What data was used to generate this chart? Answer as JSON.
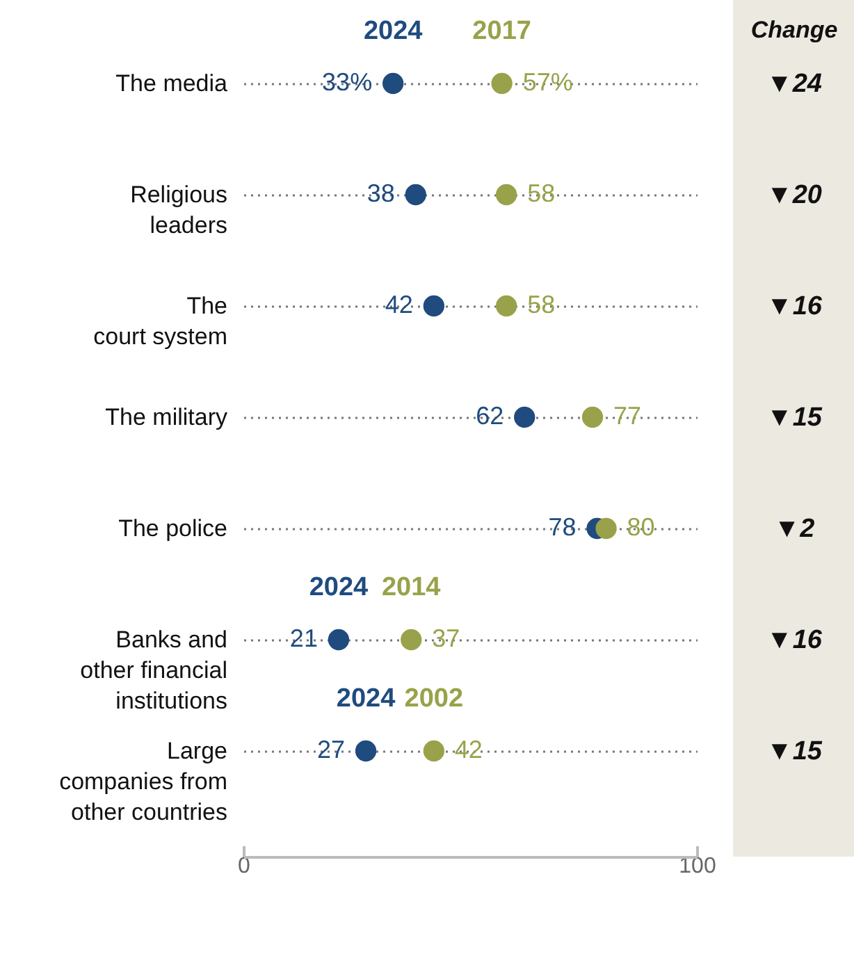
{
  "chart_data": {
    "type": "scatter",
    "categories": [
      "The media",
      "Religious leaders",
      "The court system",
      "The military",
      "The police",
      "Banks and other financial institutions",
      "Large companies from other countries"
    ],
    "series": [
      {
        "name": "2024",
        "color": "#1f4b7f",
        "values": [
          33,
          38,
          42,
          62,
          78,
          21,
          27
        ],
        "value_labels": [
          "33%",
          "38",
          "42",
          "62",
          "78",
          "21",
          "27"
        ]
      },
      {
        "name": "2017",
        "color": "#99a24a",
        "values": [
          57,
          58,
          58,
          77,
          80,
          null,
          null
        ],
        "value_labels": [
          "57%",
          "58",
          "58",
          "77",
          "80",
          null,
          null
        ]
      },
      {
        "name": "2014",
        "color": "#99a24a",
        "values": [
          null,
          null,
          null,
          null,
          null,
          37,
          null
        ],
        "value_labels": [
          null,
          null,
          null,
          null,
          null,
          "37",
          null
        ]
      },
      {
        "name": "2002",
        "color": "#99a24a",
        "values": [
          null,
          null,
          null,
          null,
          null,
          null,
          42
        ],
        "value_labels": [
          null,
          null,
          null,
          null,
          null,
          null,
          "42"
        ]
      }
    ],
    "orientation": "horizontal",
    "xlim": [
      0,
      100
    ],
    "xticks": [
      0,
      100
    ],
    "grid": "y",
    "marker": "circle",
    "annotations": [
      "Change",
      "▼24",
      "▼20",
      "▼16",
      "▼15",
      "▼2",
      "▼16",
      "▼15"
    ]
  }
}
